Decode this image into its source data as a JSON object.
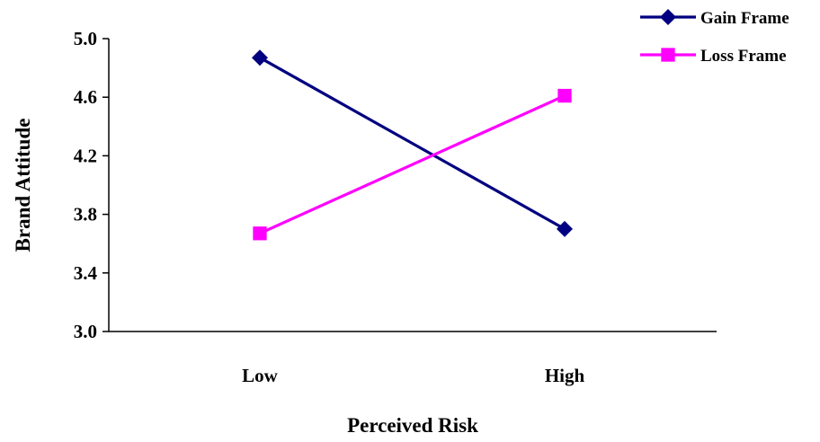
{
  "chart_data": {
    "type": "line",
    "title": "",
    "xlabel": "Perceived Risk",
    "ylabel": "Brand Attitude",
    "categories": [
      "Low",
      "High"
    ],
    "ylim": [
      3.0,
      5.0
    ],
    "yticks": [
      "3.0",
      "3.4",
      "3.8",
      "4.2",
      "4.6",
      "5.0"
    ],
    "grid": false,
    "legend_position": "top-right",
    "series": [
      {
        "name": "Gain Frame",
        "values": [
          4.87,
          3.7
        ],
        "color": "#000080",
        "marker": "diamond"
      },
      {
        "name": "Loss Frame",
        "values": [
          3.67,
          4.61
        ],
        "color": "#FF00FF",
        "marker": "square"
      }
    ]
  }
}
